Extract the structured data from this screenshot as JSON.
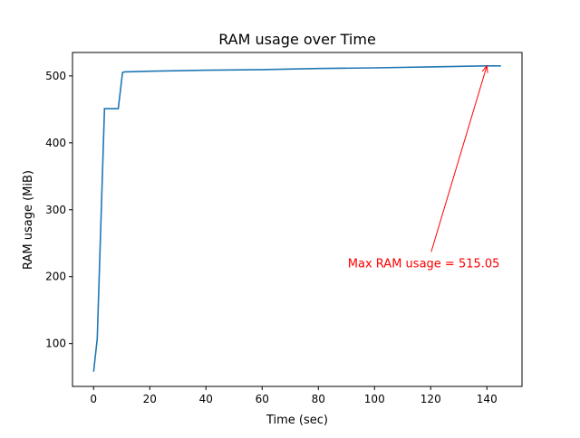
{
  "chart_data": {
    "type": "line",
    "title": "RAM usage over Time",
    "xlabel": "Time (sec)",
    "ylabel": "RAM usage (MiB)",
    "xlim": [
      -7.5,
      152.5
    ],
    "ylim": [
      36,
      535
    ],
    "xticks": [
      0,
      20,
      40,
      60,
      80,
      100,
      120,
      140
    ],
    "yticks": [
      100,
      200,
      300,
      400,
      500
    ],
    "grid": false,
    "series": [
      {
        "color": "#1f77b4",
        "x": [
          0,
          1.3,
          3.9,
          8.8,
          10.3,
          11,
          20,
          40,
          60,
          80,
          100,
          120,
          140,
          145
        ],
        "y": [
          58,
          107,
          451,
          451,
          505,
          506,
          507,
          508.5,
          509.5,
          511,
          512,
          513.5,
          515,
          515.05
        ]
      }
    ],
    "annotation": {
      "text": "Max RAM usage = 515.05",
      "xy": [
        140,
        515.05
      ],
      "xytext": [
        90.5,
        214
      ],
      "color": "#ff0000"
    }
  }
}
